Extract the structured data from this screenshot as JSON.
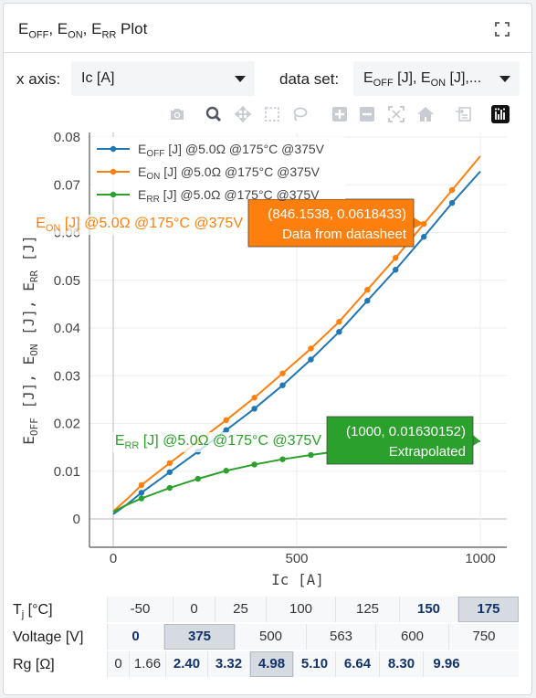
{
  "panel": {
    "title_parts": [
      "E",
      "OFF",
      ", E",
      "ON",
      ", E",
      "RR",
      " Plot"
    ],
    "expand_icon": "expand-icon"
  },
  "controls": {
    "xaxis_label": "x axis:",
    "xaxis_value": "Ic [A]",
    "dataset_label": "data set:",
    "dataset_value_parts": [
      "E",
      "OFF",
      " [J], E",
      "ON",
      " [J],..."
    ]
  },
  "modebar": [
    "camera-icon",
    "zoom-icon",
    "pan-icon",
    "box-select-icon",
    "lasso-icon",
    "zoom-in-icon",
    "zoom-out-icon",
    "autoscale-icon",
    "reset-axes-icon",
    "toggle-spike-icon",
    "plotly-logo-icon"
  ],
  "chart_data": {
    "type": "line",
    "xlabel": "Ic [A]",
    "ylabel_parts": [
      "E",
      "OFF",
      " [J], E",
      "ON",
      " [J], E",
      "RR",
      " [J]"
    ],
    "xlim": [
      -60,
      1065
    ],
    "ylim": [
      -0.006,
      0.0815
    ],
    "xticks": [
      0,
      500,
      1000
    ],
    "xtick_labels": [
      "0",
      "500",
      "1000"
    ],
    "yticks": [
      0,
      0.01,
      0.02,
      0.03,
      0.04,
      0.05,
      0.06,
      0.07,
      0.08
    ],
    "ytick_labels": [
      "0",
      "0.01",
      "0.02",
      "0.03",
      "0.04",
      "0.05",
      "0.06",
      "0.07",
      "0.08"
    ],
    "grid": true,
    "legend_position": "top-left",
    "series": [
      {
        "name_parts": [
          "E",
          "OFF",
          " [J]  @5.0Ω @175°C @375V"
        ],
        "color": "#1f77b4",
        "x": [
          0,
          38.5,
          76.9,
          153.8,
          230.8,
          307.7,
          384.6,
          461.5,
          538.5,
          615.4,
          692.3,
          769.2,
          846.2,
          923.1,
          1000
        ],
        "y": [
          0.001,
          0.0031,
          0.0055,
          0.0098,
          0.0141,
          0.0186,
          0.0231,
          0.028,
          0.0334,
          0.0392,
          0.0457,
          0.0522,
          0.0591,
          0.0662,
          0.0728
        ],
        "markers": [
          76.9,
          153.8,
          230.8,
          307.7,
          384.6,
          461.5,
          538.5,
          615.4,
          692.3,
          769.2,
          846.2,
          923.1
        ]
      },
      {
        "name_parts": [
          "E",
          "ON",
          " [J]  @5.0Ω @175°C @375V"
        ],
        "color": "#ff7f0e",
        "x": [
          0,
          38.5,
          76.9,
          153.8,
          230.8,
          307.7,
          384.6,
          461.5,
          538.5,
          615.4,
          692.3,
          769.2,
          846.2,
          923.1,
          1000
        ],
        "y": [
          0.0016,
          0.0042,
          0.0071,
          0.0117,
          0.0162,
          0.0207,
          0.0254,
          0.0305,
          0.0357,
          0.0413,
          0.048,
          0.0547,
          0.0618,
          0.0689,
          0.076
        ],
        "markers": [
          76.9,
          153.8,
          230.8,
          307.7,
          384.6,
          461.5,
          538.5,
          615.4,
          692.3,
          769.2,
          846.2,
          923.1
        ]
      },
      {
        "name_parts": [
          "E",
          "RR",
          " [J]  @5.0Ω @175°C @375V"
        ],
        "color": "#2ca02c",
        "x": [
          0,
          38.5,
          76.9,
          153.8,
          230.8,
          307.7,
          384.6,
          461.5,
          538.5,
          615.4,
          692.3,
          769.2,
          846.2,
          923.1,
          1000
        ],
        "y": [
          0.0015,
          0.003,
          0.0043,
          0.0065,
          0.0084,
          0.0101,
          0.0114,
          0.0125,
          0.0134,
          0.0142,
          0.0148,
          0.0153,
          0.0157,
          0.016,
          0.0163
        ],
        "markers": [
          76.9,
          153.8,
          230.8,
          307.7,
          384.6,
          461.5,
          538.5
        ]
      }
    ],
    "hover": [
      {
        "series_index": 1,
        "side_label_parts": [
          "E",
          "ON",
          " [J]  @5.0Ω @175°C @375V"
        ],
        "line1": "(846.1538, 0.0618433)",
        "line2": "Data from datasheet",
        "x": 846.1538,
        "y": 0.0618433,
        "color": "#ff7f0e"
      },
      {
        "series_index": 2,
        "side_label_parts": [
          "E",
          "RR",
          " [J]  @5.0Ω @175°C @375V"
        ],
        "line1": "(1000, 0.01630152)",
        "line2": "Extrapolated",
        "x": 1000,
        "y": 0.01630152,
        "color": "#2ca02c"
      }
    ]
  },
  "params": {
    "rows": [
      {
        "label_parts": [
          "T",
          "j",
          " [°C]"
        ],
        "values": [
          "-50",
          "0",
          "25",
          "100",
          "125",
          "150",
          "175"
        ],
        "bold": [
          false,
          false,
          false,
          false,
          false,
          true,
          true
        ],
        "selected": 6
      },
      {
        "label_parts": [
          "Voltage [V]"
        ],
        "values": [
          "0",
          "375",
          "500",
          "563",
          "600",
          "750"
        ],
        "bold": [
          true,
          true,
          false,
          false,
          false,
          false
        ],
        "selected": 1
      },
      {
        "label_parts": [
          "Rg [Ω]"
        ],
        "values": [
          "0",
          "1.66",
          "2.40",
          "3.32",
          "4.98",
          "5.10",
          "6.64",
          "8.30",
          "9.96"
        ],
        "bold": [
          false,
          false,
          true,
          true,
          true,
          true,
          true,
          true,
          true
        ],
        "selected": 4
      }
    ]
  }
}
